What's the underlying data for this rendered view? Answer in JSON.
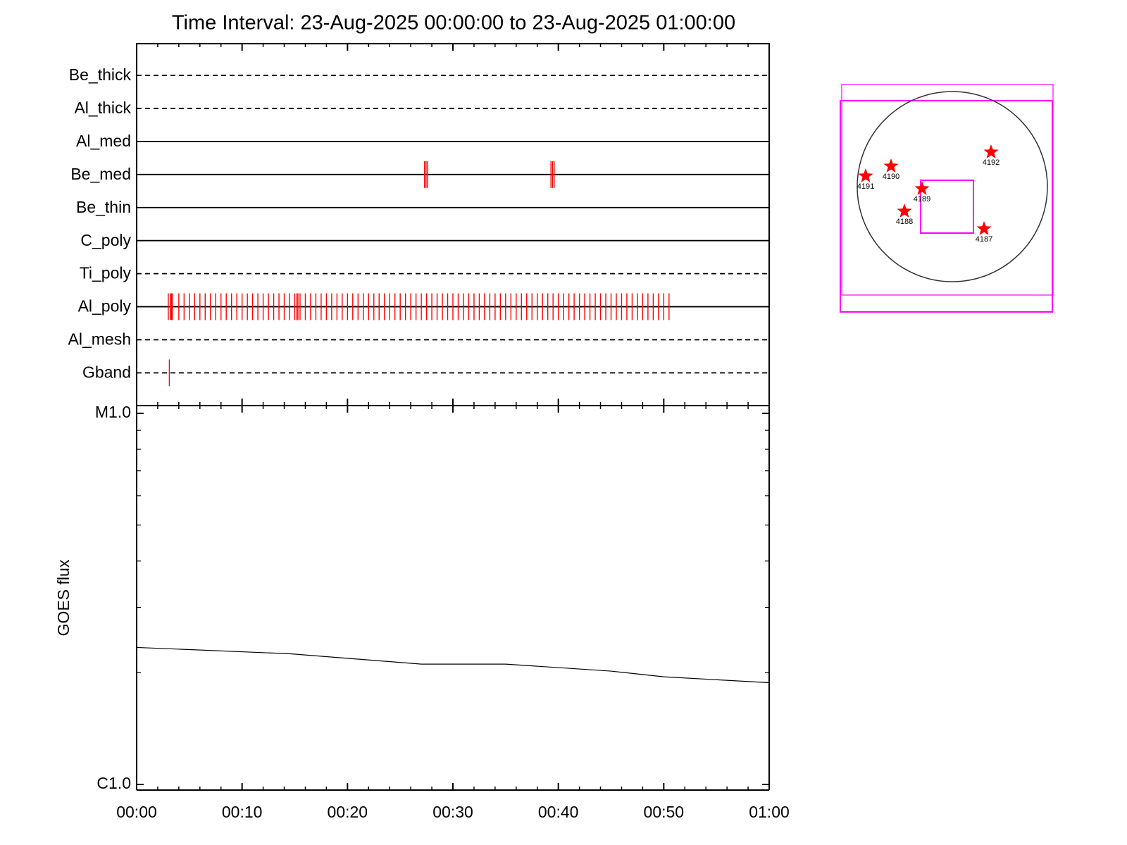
{
  "chart_data": [
    {
      "type": "event",
      "title": "Time Interval: 23-Aug-2025 00:00:00 to 23-Aug-2025 01:00:00",
      "xlim": [
        0,
        60
      ],
      "xticks": [
        {
          "value": 0,
          "label": "00:00"
        },
        {
          "value": 10,
          "label": "00:10"
        },
        {
          "value": 20,
          "label": "00:20"
        },
        {
          "value": 30,
          "label": "00:30"
        },
        {
          "value": 40,
          "label": "00:40"
        },
        {
          "value": 50,
          "label": "00:50"
        },
        {
          "value": 60,
          "label": "01:00"
        }
      ],
      "xminorticks": [
        2,
        4,
        6,
        8,
        12,
        14,
        16,
        18,
        22,
        24,
        26,
        28,
        32,
        34,
        36,
        38,
        42,
        44,
        46,
        48,
        52,
        54,
        56,
        58
      ],
      "color": "#ff0000",
      "series": [
        {
          "name": "Be_thick",
          "line": "dashed",
          "values": []
        },
        {
          "name": "Al_thick",
          "line": "dashed",
          "values": []
        },
        {
          "name": "Al_med",
          "line": "solid",
          "values": []
        },
        {
          "name": "Be_med",
          "line": "solid",
          "values": [
            27.3,
            27.45,
            27.6,
            39.3,
            39.45,
            39.6
          ]
        },
        {
          "name": "Be_thin",
          "line": "solid",
          "values": []
        },
        {
          "name": "C_poly",
          "line": "solid",
          "values": []
        },
        {
          "name": "Ti_poly",
          "line": "dashed",
          "values": []
        },
        {
          "name": "Al_poly",
          "line": "solid",
          "values": [
            3.0,
            3.2,
            3.3,
            3.4,
            4.0,
            4.5,
            5.0,
            5.5,
            6.0,
            6.5,
            7.0,
            7.5,
            8.0,
            8.5,
            9.0,
            9.5,
            10.0,
            10.5,
            11.0,
            11.5,
            12.0,
            12.5,
            13.0,
            13.5,
            14.0,
            14.5,
            15.0,
            15.2,
            15.3,
            15.5,
            16.0,
            16.5,
            17.0,
            17.5,
            18.0,
            18.5,
            19.0,
            19.5,
            20.0,
            20.5,
            21.0,
            21.5,
            22.0,
            22.5,
            23.0,
            23.5,
            24.0,
            24.5,
            25.0,
            25.5,
            26.0,
            26.5,
            27.0,
            27.5,
            28.0,
            28.5,
            29.0,
            29.5,
            30.0,
            30.5,
            31.0,
            31.5,
            32.0,
            32.5,
            33.0,
            33.5,
            34.0,
            34.5,
            35.0,
            35.5,
            36.0,
            36.5,
            37.0,
            37.5,
            38.0,
            38.5,
            39.0,
            39.5,
            40.0,
            40.5,
            41.0,
            41.5,
            42.0,
            42.5,
            43.0,
            43.5,
            44.0,
            44.5,
            45.0,
            45.5,
            46.0,
            46.5,
            47.0,
            47.5,
            48.0,
            48.5,
            49.0,
            49.5,
            50.0,
            50.5
          ]
        },
        {
          "name": "Al_mesh",
          "line": "dashed",
          "values": []
        },
        {
          "name": "Gband",
          "line": "dashed",
          "values": [
            3.1
          ]
        }
      ]
    },
    {
      "type": "line",
      "y_label": "GOES flux",
      "log_y": true,
      "color": "#000000",
      "xlim": [
        0,
        60
      ],
      "ylim": [
        1e-06,
        1e-05
      ],
      "yticks": [
        {
          "value": 1e-05,
          "label": "M1.0"
        },
        {
          "value": 1e-06,
          "label": "C1.0"
        }
      ],
      "yminorticks": [
        2e-06,
        3e-06,
        4e-06,
        5e-06,
        6e-06,
        7e-06,
        8e-06,
        9e-06
      ],
      "x": [
        0,
        14.5,
        27,
        35,
        45,
        50,
        60
      ],
      "values": [
        2.34e-06,
        2.25e-06,
        2.11e-06,
        2.11e-06,
        2.02e-06,
        1.95e-06,
        1.88e-06
      ]
    }
  ],
  "map": {
    "regions": [
      {
        "label": "4192"
      },
      {
        "label": "4190"
      },
      {
        "label": "4191"
      },
      {
        "label": "4189"
      },
      {
        "label": "4188"
      },
      {
        "label": "4187"
      }
    ]
  }
}
